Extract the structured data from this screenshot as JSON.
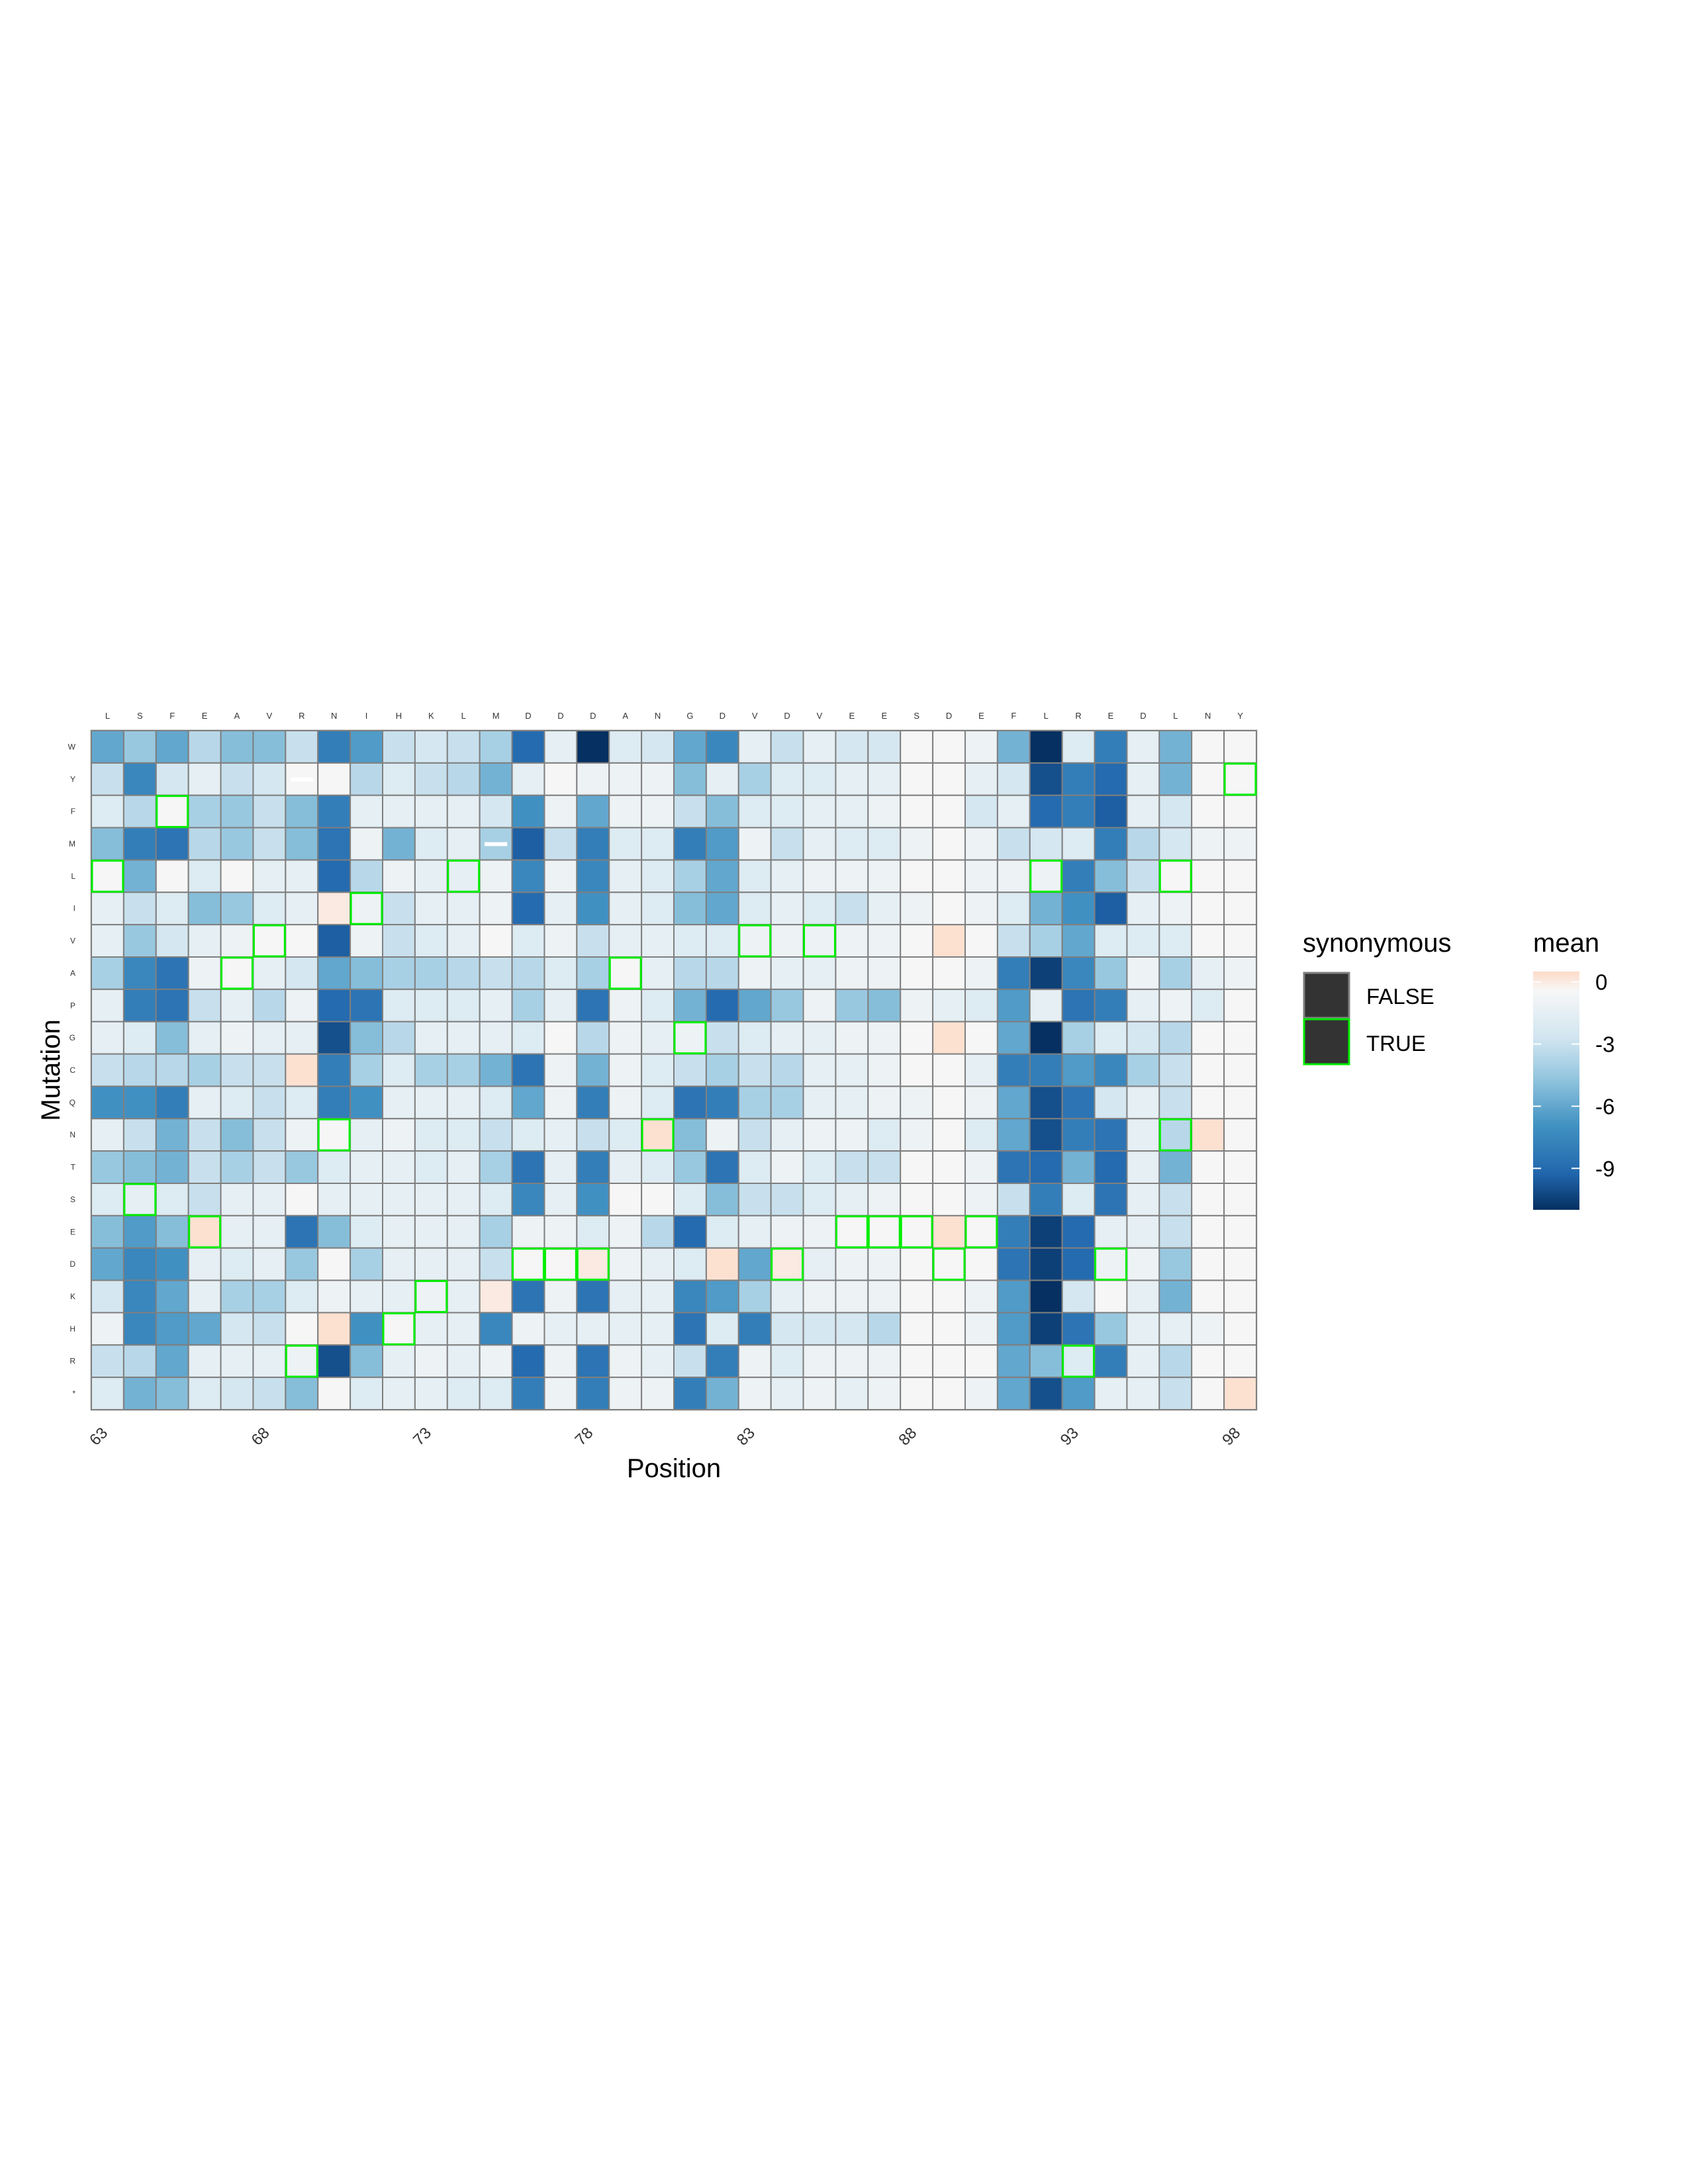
{
  "chart_data": {
    "type": "heatmap",
    "title": "",
    "xlabel": "Position",
    "ylabel": "Mutation",
    "x_positions": [
      63,
      64,
      65,
      66,
      67,
      68,
      69,
      70,
      71,
      72,
      73,
      74,
      75,
      76,
      77,
      78,
      79,
      80,
      81,
      82,
      83,
      84,
      85,
      86,
      87,
      88,
      89,
      90,
      91,
      92,
      93,
      94,
      95,
      96,
      97,
      98
    ],
    "x_tick_labels": [
      "63",
      "68",
      "73",
      "78",
      "83",
      "88",
      "93",
      "98"
    ],
    "x_tick_positions": [
      63,
      68,
      73,
      78,
      83,
      88,
      93,
      98
    ],
    "wildtype_residues": [
      "L",
      "S",
      "F",
      "E",
      "A",
      "V",
      "R",
      "N",
      "I",
      "H",
      "K",
      "L",
      "M",
      "D",
      "D",
      "D",
      "A",
      "N",
      "G",
      "D",
      "V",
      "D",
      "V",
      "E",
      "E",
      "S",
      "D",
      "E",
      "F",
      "L",
      "R",
      "E",
      "D",
      "L",
      "N",
      "Y"
    ],
    "y_categories": [
      "W",
      "Y",
      "F",
      "M",
      "L",
      "I",
      "V",
      "A",
      "P",
      "G",
      "C",
      "Q",
      "N",
      "T",
      "S",
      "E",
      "D",
      "K",
      "H",
      "R",
      "*"
    ],
    "value_range": [
      -11,
      0.5
    ],
    "legend_fill": {
      "title": "mean",
      "ticks": [
        0,
        -3,
        -6,
        -9
      ],
      "tick_labels": [
        "0",
        "-3",
        "-6",
        "-9"
      ],
      "colors": [
        "#053061",
        "#2166ac",
        "#4393c3",
        "#92c5de",
        "#d1e5f0",
        "#f7f7f7",
        "#fddbc7"
      ]
    },
    "legend_outline": {
      "title": "synonymous",
      "entries": [
        {
          "label": "FALSE",
          "outline": "#808080"
        },
        {
          "label": "TRUE",
          "outline": "#00ee00"
        }
      ]
    },
    "values": [
      [
        -6,
        -4.5,
        -6,
        -3.5,
        -5,
        -5,
        -3,
        -8,
        -6.5,
        -3,
        -2.5,
        -3,
        -4,
        -9,
        -1.5,
        -11,
        -2,
        -2.5,
        -6,
        -7.5,
        -1.5,
        -3,
        -1.5,
        -2.5,
        -2.5,
        -0.5,
        -0.5,
        -1,
        -5.5,
        -11,
        -2,
        -8,
        -1.5,
        -5.5,
        -0.5,
        -0.5
      ],
      [
        -3,
        -7.5,
        -2.5,
        -1.5,
        -3,
        -2.5,
        -0.5,
        -0.5,
        -3.5,
        -2,
        -3,
        -3.5,
        -5.5,
        -1.5,
        -0.5,
        -1,
        -1,
        -1,
        -5,
        -1.5,
        -4,
        -2,
        -2,
        -1.5,
        -1.5,
        -0.5,
        -0.5,
        -1.5,
        -2.5,
        -10,
        -8,
        -9,
        -1.5,
        -5.5,
        -0.5,
        -0.5
      ],
      [
        -2,
        -3.5,
        -0.5,
        -4,
        -4.5,
        -3,
        -5,
        -8,
        -1.5,
        -1.5,
        -1.5,
        -1.5,
        -2.5,
        -7,
        -1,
        -6,
        -1,
        -1,
        -3,
        -5,
        -2,
        -2,
        -1.5,
        -1.5,
        -1,
        -0.5,
        -0.5,
        -2.5,
        -1.5,
        -9,
        -8,
        -9.5,
        -1.5,
        -2.5,
        -0.5,
        -0.5
      ],
      [
        -5,
        -8,
        -8.5,
        -3.5,
        -4.5,
        -3,
        -5,
        -8.5,
        -1,
        -5.5,
        -2,
        -1.5,
        -4,
        -9.5,
        -3,
        -8,
        -2,
        -2,
        -8,
        -6.5,
        -1,
        -3,
        -1.5,
        -2,
        -2,
        -1,
        -0.5,
        -1,
        -3,
        -2.5,
        -2,
        -8,
        -3.5,
        -2.5,
        -1,
        -1
      ],
      [
        -0.5,
        -5.5,
        -0.5,
        -2,
        -0.5,
        -1.5,
        -1.5,
        -9,
        -3.5,
        -1,
        -1.5,
        -1.5,
        -1,
        -7.5,
        -1,
        -7.5,
        -1.5,
        -2,
        -4,
        -6,
        -2,
        -1.5,
        -1,
        -1,
        -1,
        -0.5,
        -0.5,
        -1,
        -1,
        -1,
        -8,
        -5,
        -3,
        -0.5,
        -0.5,
        -0.5
      ],
      [
        -1.5,
        -3,
        -2,
        -5,
        -4.5,
        -2,
        -1.5,
        0,
        -1,
        -3,
        -1.5,
        -1.5,
        -1,
        -9,
        -1.5,
        -7,
        -1.5,
        -2,
        -5,
        -6,
        -2,
        -1.5,
        -2,
        -3,
        -1.5,
        -1,
        -0.5,
        -1,
        -2,
        -5.5,
        -7,
        -9.5,
        -1.5,
        -1,
        -0.5,
        -0.5
      ],
      [
        -1.5,
        -4.5,
        -2.5,
        -1.5,
        -1,
        -0.5,
        -0.5,
        -9.5,
        -1,
        -3,
        -2,
        -1.5,
        -0.5,
        -2,
        -1,
        -3,
        -1.5,
        -1.5,
        -2,
        -2,
        -1,
        -1,
        -1,
        -1,
        -1,
        -0.5,
        0.3,
        -0.5,
        -3,
        -4,
        -6,
        -2,
        -2,
        -2,
        -0.5,
        -0.5
      ],
      [
        -4,
        -7.5,
        -8.5,
        -1,
        -0.5,
        -1.5,
        -2.5,
        -6,
        -5,
        -4,
        -4,
        -3.5,
        -3,
        -3.5,
        -2,
        -4,
        -0.5,
        -1.5,
        -3.5,
        -3.5,
        -1,
        -1.5,
        -1.5,
        -1,
        -1,
        -0.5,
        -0.5,
        -1,
        -8,
        -10.5,
        -7.5,
        -4.5,
        -1,
        -4,
        -1.5,
        -1
      ],
      [
        -1.5,
        -8,
        -8.5,
        -3,
        -1.5,
        -3.5,
        -1,
        -9,
        -8.5,
        -2,
        -2,
        -2,
        -1.5,
        -4,
        -1.5,
        -8.5,
        -1,
        -2,
        -5.5,
        -9,
        -6,
        -4.5,
        -1,
        -4.5,
        -5,
        -1,
        -1.5,
        -2,
        -6.5,
        -1.5,
        -8.5,
        -8,
        -1.5,
        -1,
        -2,
        -0.5
      ],
      [
        -1.5,
        -2,
        -5,
        -1.5,
        -1,
        -1.5,
        -1.5,
        -10,
        -5,
        -3.5,
        -1.5,
        -1.5,
        -1.5,
        -2,
        -0.5,
        -3.5,
        -1,
        -1.5,
        -1,
        -3,
        -2,
        -1.5,
        -1.5,
        -1,
        -1,
        -0.5,
        0.3,
        -0.5,
        -6,
        -11,
        -4,
        -2,
        -2.5,
        -3.5,
        -0.5,
        -0.5
      ],
      [
        -3,
        -3.5,
        -3.5,
        -4,
        -3,
        -3,
        0.3,
        -8,
        -4,
        -2,
        -4,
        -4,
        -5.5,
        -8.5,
        -1,
        -5.5,
        -1,
        -2,
        -3,
        -4,
        -3,
        -3.5,
        -1.5,
        -1.5,
        -1,
        -0.5,
        -0.5,
        -1.5,
        -8,
        -8,
        -6.5,
        -7.5,
        -4,
        -3,
        -0.5,
        -0.5
      ],
      [
        -7,
        -7,
        -8,
        -1.5,
        -2,
        -3,
        -2,
        -8,
        -7,
        -1.5,
        -1.5,
        -1.5,
        -2,
        -6,
        -1,
        -8,
        -1,
        -2,
        -8.5,
        -8,
        -4,
        -4,
        -1.5,
        -1.5,
        -1,
        -1,
        -0.5,
        -1,
        -6,
        -10,
        -8.5,
        -2.5,
        -1.5,
        -3,
        -0.5,
        -0.5
      ],
      [
        -1.5,
        -3,
        -5.5,
        -3,
        -5,
        -3,
        -1,
        -0.5,
        -1.5,
        -1,
        -2,
        -2,
        -3,
        -2,
        -1.5,
        -3,
        -2,
        0.3,
        -5,
        -1,
        -3,
        -1.5,
        -1,
        -1,
        -2,
        -1,
        -0.5,
        -2,
        -6,
        -10,
        -8,
        -8.5,
        -1.5,
        -3.5,
        0.3,
        -0.5
      ],
      [
        -4.5,
        -5,
        -5.5,
        -3,
        -4,
        -3,
        -4.5,
        -2,
        -1.5,
        -1.5,
        -2,
        -1.5,
        -4,
        -8.5,
        -1.5,
        -8,
        -1.5,
        -2,
        -4.5,
        -8.5,
        -2,
        -1,
        -2,
        -3,
        -3,
        -0.5,
        -0.5,
        -1,
        -8.5,
        -9,
        -5.5,
        -9,
        -1.5,
        -5.5,
        -0.5,
        -0.5
      ],
      [
        -2,
        -1.5,
        -2,
        -3,
        -1.5,
        -1.5,
        -0.5,
        -1.5,
        -1.5,
        -1.5,
        -1.5,
        -1.5,
        -2,
        -7.5,
        -1.5,
        -7,
        -0.5,
        -0.5,
        -2,
        -5,
        -3,
        -3,
        -2,
        -1.5,
        -1,
        -0.5,
        -0.5,
        -1,
        -3,
        -8,
        -2,
        -8.5,
        -1.5,
        -3,
        -0.5,
        -0.5
      ],
      [
        -5,
        -6.5,
        -5,
        0.3,
        -1.5,
        -1.5,
        -8.5,
        -5,
        -2,
        -1.5,
        -1.5,
        -1.5,
        -4,
        -1,
        -1,
        -2,
        -1,
        -3.5,
        -9,
        -2,
        -1.5,
        -1,
        -1,
        -0.5,
        -0.5,
        -0.5,
        0.3,
        -0.5,
        -8,
        -10.5,
        -9,
        -1.5,
        -1.5,
        -3,
        -0.5,
        -0.5
      ],
      [
        -6,
        -7.5,
        -7,
        -1.5,
        -2,
        -1.5,
        -4.5,
        -0.5,
        -4,
        -1.5,
        -1.5,
        -1.5,
        -3,
        -0.5,
        -0.5,
        0,
        -1,
        -1.5,
        -2,
        0.3,
        -6,
        0,
        -1.5,
        -1,
        -1,
        -0.5,
        -0.5,
        -0.5,
        -8.5,
        -10.5,
        -9,
        -1,
        -1,
        -4.5,
        -0.5,
        -0.5
      ],
      [
        -2.5,
        -7.5,
        -6,
        -1.5,
        -4,
        -4,
        -2,
        -1,
        -1.5,
        -1.5,
        -1,
        -1.5,
        0,
        -8.5,
        -1,
        -8.5,
        -1.5,
        -1.5,
        -7.5,
        -6.5,
        -4,
        -1.5,
        -1,
        -1,
        -1,
        -0.5,
        -0.5,
        -1,
        -6.5,
        -11,
        -2.5,
        -0.5,
        -1.5,
        -5.5,
        -0.5,
        -0.5
      ],
      [
        -1,
        -7.5,
        -6.5,
        -6,
        -2.5,
        -3,
        -0.5,
        0.3,
        -7,
        -0.5,
        -1.5,
        -1.5,
        -7.5,
        -1,
        -1.5,
        -1.5,
        -1.5,
        -1.5,
        -8.5,
        -2,
        -8,
        -2.5,
        -2.5,
        -2.5,
        -3.5,
        -0.5,
        -0.5,
        -1,
        -6.5,
        -10.5,
        -8.5,
        -4.5,
        -1.5,
        -1.5,
        -1,
        -0.5
      ],
      [
        -3,
        -3.5,
        -6,
        -1.5,
        -1.5,
        -1.5,
        -1,
        -10,
        -5,
        -1.5,
        -1,
        -1.5,
        -1,
        -9,
        -1,
        -8.5,
        -1,
        -1.5,
        -3,
        -8,
        -1,
        -2,
        -1,
        -1,
        -1,
        -0.5,
        -0.5,
        -0.5,
        -6,
        -5,
        -2,
        -8,
        -1.5,
        -3.5,
        -0.5,
        -0.5
      ],
      [
        -2,
        -5.5,
        -5,
        -2,
        -2.5,
        -3,
        -5,
        -0.5,
        -2,
        -1.5,
        -1.5,
        -2,
        -2,
        -8,
        -1,
        -8,
        -1,
        -1,
        -8,
        -5.5,
        -1,
        -1.5,
        -1,
        -1.5,
        -1,
        -0.5,
        -0.5,
        -1,
        -6,
        -10,
        -6.5,
        -1.5,
        -1.5,
        -3,
        -0.5,
        0.3
      ]
    ],
    "synonymous_cells": [
      [
        1,
        35
      ],
      [
        2,
        2
      ],
      [
        4,
        0
      ],
      [
        4,
        11
      ],
      [
        4,
        29
      ],
      [
        4,
        33
      ],
      [
        5,
        8
      ],
      [
        6,
        5
      ],
      [
        6,
        20
      ],
      [
        6,
        22
      ],
      [
        7,
        4
      ],
      [
        7,
        16
      ],
      [
        9,
        18
      ],
      [
        12,
        7
      ],
      [
        12,
        17
      ],
      [
        12,
        33
      ],
      [
        14,
        1
      ],
      [
        15,
        3
      ],
      [
        15,
        23
      ],
      [
        15,
        24
      ],
      [
        15,
        25
      ],
      [
        15,
        27
      ],
      [
        16,
        13
      ],
      [
        16,
        14
      ],
      [
        16,
        15
      ],
      [
        16,
        21
      ],
      [
        16,
        26
      ],
      [
        16,
        31
      ],
      [
        17,
        10
      ],
      [
        18,
        9
      ],
      [
        19,
        6
      ],
      [
        19,
        30
      ]
    ],
    "missing_cells": [
      [
        1,
        6
      ],
      [
        3,
        12
      ]
    ],
    "legend_placement": "right",
    "grid": false
  }
}
